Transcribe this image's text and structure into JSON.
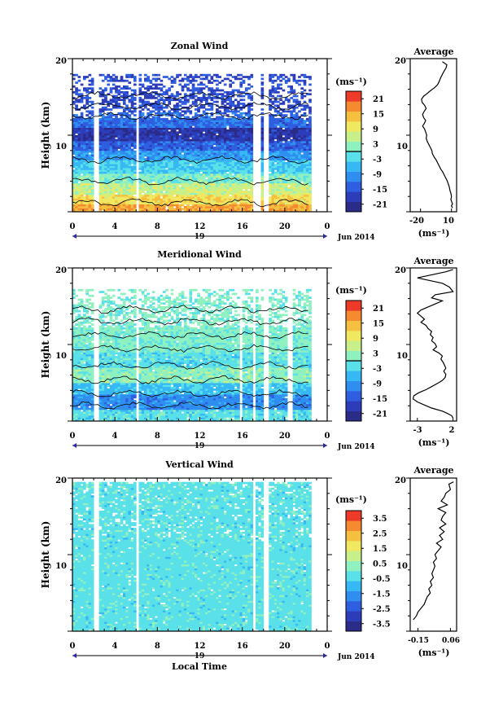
{
  "chart_data": [
    {
      "type": "heatmap",
      "title": "Zonal Wind",
      "ylabel": "Height (km)",
      "xlim": [
        0,
        24
      ],
      "ylim": [
        0,
        20
      ],
      "x_ticks": [
        "0",
        "4",
        "8",
        "12",
        "16",
        "20",
        "0"
      ],
      "x_ticks_values": [
        0,
        4,
        8,
        12,
        16,
        20,
        24
      ],
      "y_ticks": [
        "10",
        "20"
      ],
      "y_ticks_values": [
        10,
        20
      ],
      "day_label": "19",
      "date_label": "Jun 2014",
      "colorbar": {
        "unit": "(ms⁻¹)",
        "min": -24,
        "max": 24,
        "tick_values": [
          -21,
          -15,
          -9,
          -3,
          3,
          9,
          15,
          21
        ],
        "tick_labels": [
          "-21",
          "-15",
          "-9",
          "-3",
          "3",
          "9",
          "15",
          "21"
        ],
        "zero_line": true
      },
      "profile_x_value": [
        1.2,
        5.5,
        4.8,
        2.5,
        1.0,
        -0.5,
        -2.0,
        -3.5,
        -6.5,
        -10.5,
        -14.0,
        -17.0,
        -19.0,
        -18.5,
        -16.0,
        -14.5,
        -16.5,
        -18.0,
        -17.0,
        -15.0,
        -16.5,
        -18.0,
        -16.0,
        -15.0,
        -14.0,
        -14.5,
        -13.5,
        -12.0,
        -10.5,
        -9.0,
        -8.5,
        -7.0,
        -5.0,
        -3.5,
        -2.0,
        -0.5,
        1.5,
        3.0,
        4.5,
        6.0,
        7.0,
        8.0,
        8.5,
        9.5,
        10.0,
        9.5,
        10.5,
        11.0,
        10.0,
        11.0
      ],
      "profile_height_km": [
        19.6,
        19.2,
        18.8,
        18.3,
        17.9,
        17.5,
        17.0,
        16.6,
        16.2,
        15.8,
        15.4,
        15.1,
        14.7,
        14.3,
        13.9,
        13.5,
        13.1,
        12.7,
        12.3,
        11.9,
        11.5,
        11.2,
        10.8,
        10.4,
        10.0,
        9.6,
        9.2,
        8.8,
        8.4,
        8.0,
        7.6,
        7.2,
        6.8,
        6.4,
        6.0,
        5.6,
        5.2,
        4.8,
        4.4,
        4.0,
        3.6,
        3.2,
        2.8,
        2.4,
        2.0,
        1.6,
        1.2,
        1.0,
        0.8,
        0.5
      ],
      "profile": {
        "title": "Average",
        "xlabel": "(ms⁻¹)",
        "xlim": [
          -30,
          15
        ],
        "x_ticks": [
          "-20",
          "10"
        ],
        "x_ticks_values": [
          -20,
          10
        ]
      }
    },
    {
      "type": "heatmap",
      "title": "Meridional Wind",
      "ylabel": "Height (km)",
      "xlim": [
        0,
        24
      ],
      "ylim": [
        0,
        20
      ],
      "x_ticks": [
        "0",
        "4",
        "8",
        "12",
        "16",
        "20",
        "0"
      ],
      "x_ticks_values": [
        0,
        4,
        8,
        12,
        16,
        20,
        24
      ],
      "y_ticks": [
        "10",
        "20"
      ],
      "y_ticks_values": [
        10,
        20
      ],
      "day_label": "19",
      "date_label": "Jun 2014",
      "colorbar": {
        "unit": "(ms⁻¹)",
        "min": -24,
        "max": 24,
        "tick_values": [
          -21,
          -15,
          -9,
          -3,
          3,
          9,
          15,
          21
        ],
        "tick_labels": [
          "-21",
          "-15",
          "-9",
          "-3",
          "3",
          "9",
          "15",
          "21"
        ],
        "zero_line": true
      },
      "profile_x_value": [
        2.0,
        1.0,
        -3.0,
        0.5,
        1.5,
        2.0,
        -0.5,
        -1.0,
        0.5,
        -0.5,
        -1.5,
        -2.5,
        -3.0,
        -2.5,
        -2.0,
        -2.5,
        -1.8,
        -1.5,
        -1.0,
        -1.2,
        -0.8,
        -1.0,
        -0.5,
        -0.3,
        -0.8,
        0.0,
        0.5,
        0.3,
        0.6,
        0.8,
        1.0,
        0.7,
        1.0,
        0.9,
        0.5,
        -0.2,
        -1.0,
        -1.8,
        -2.8,
        -3.5,
        -3.6,
        -3.0,
        -2.0,
        -1.0,
        0.5,
        1.2,
        1.8,
        2.0
      ],
      "profile_height_km": [
        19.8,
        19.5,
        18.7,
        18.0,
        17.5,
        16.9,
        16.5,
        16.1,
        15.7,
        15.3,
        14.9,
        14.5,
        14.1,
        13.7,
        13.3,
        12.9,
        12.5,
        12.1,
        11.7,
        11.3,
        10.9,
        10.5,
        10.1,
        9.7,
        9.3,
        8.9,
        8.5,
        8.1,
        7.7,
        7.3,
        6.9,
        6.5,
        6.1,
        5.7,
        5.3,
        4.9,
        4.5,
        4.1,
        3.7,
        3.3,
        2.9,
        2.5,
        2.1,
        1.7,
        1.3,
        1.0,
        0.7,
        0.4
      ],
      "profile": {
        "title": "Average",
        "xlabel": "(ms⁻¹)",
        "xlim": [
          -4,
          2.5
        ],
        "x_ticks": [
          "-3",
          "2"
        ],
        "x_ticks_values": [
          -3,
          2
        ]
      }
    },
    {
      "type": "heatmap",
      "title": "Vertical Wind",
      "xlabel": "Local Time",
      "ylabel": "Height (km)",
      "xlim": [
        0,
        24
      ],
      "ylim": [
        0,
        20
      ],
      "x_ticks": [
        "0",
        "4",
        "8",
        "12",
        "16",
        "20",
        "0"
      ],
      "x_ticks_values": [
        0,
        4,
        8,
        12,
        16,
        20,
        24
      ],
      "y_ticks": [
        "10",
        "20"
      ],
      "y_ticks_values": [
        10,
        20
      ],
      "day_label": "19",
      "date_label": "Jun 2014",
      "colorbar": {
        "unit": "(ms⁻¹)",
        "min": -4,
        "max": 4,
        "tick_values": [
          -3.5,
          -2.5,
          -1.5,
          -0.5,
          0.5,
          1.5,
          2.5,
          3.5
        ],
        "tick_labels": [
          "-3.5",
          "-2.5",
          "-1.5",
          "-0.5",
          "0.5",
          "1.5",
          "2.5",
          "3.5"
        ],
        "zero_line": false
      },
      "profile_x_value": [
        0.08,
        0.05,
        0.06,
        0.03,
        0.02,
        0.0,
        0.04,
        -0.02,
        0.03,
        0.01,
        0.0,
        0.03,
        -0.01,
        0.02,
        -0.01,
        0.01,
        -0.03,
        0.0,
        -0.02,
        -0.04,
        -0.03,
        -0.05,
        -0.04,
        -0.05,
        -0.06,
        -0.05,
        -0.07,
        -0.06,
        -0.08,
        -0.07,
        -0.09,
        -0.1,
        -0.11,
        -0.13,
        -0.15,
        -0.16,
        -0.18
      ],
      "profile_height_km": [
        19.5,
        19.2,
        18.5,
        18.0,
        17.5,
        17.0,
        16.5,
        16.0,
        15.5,
        15.0,
        14.5,
        14.0,
        13.5,
        13.0,
        12.5,
        12.0,
        11.5,
        11.0,
        10.5,
        10.0,
        9.5,
        9.0,
        8.5,
        8.0,
        7.5,
        7.0,
        6.5,
        6.0,
        5.5,
        5.0,
        4.5,
        4.0,
        3.5,
        3.0,
        2.5,
        2.0,
        1.5
      ],
      "profile": {
        "title": "Average",
        "xlabel": "(ms⁻¹)",
        "xlim": [
          -0.2,
          0.1
        ],
        "x_ticks": [
          "-0.15",
          "0.06"
        ],
        "x_ticks_values": [
          -0.15,
          0.06
        ]
      }
    }
  ],
  "colors": {
    "colormap": [
      "#2b2b88",
      "#2d3cb8",
      "#2f5ee0",
      "#2f8ef0",
      "#36b8f4",
      "#5ae0e8",
      "#8ff0c0",
      "#c8f08a",
      "#f0e860",
      "#f5c040",
      "#f58a30",
      "#ee3a28"
    ],
    "data_gap": "#ffffff",
    "axis": "#000000"
  }
}
